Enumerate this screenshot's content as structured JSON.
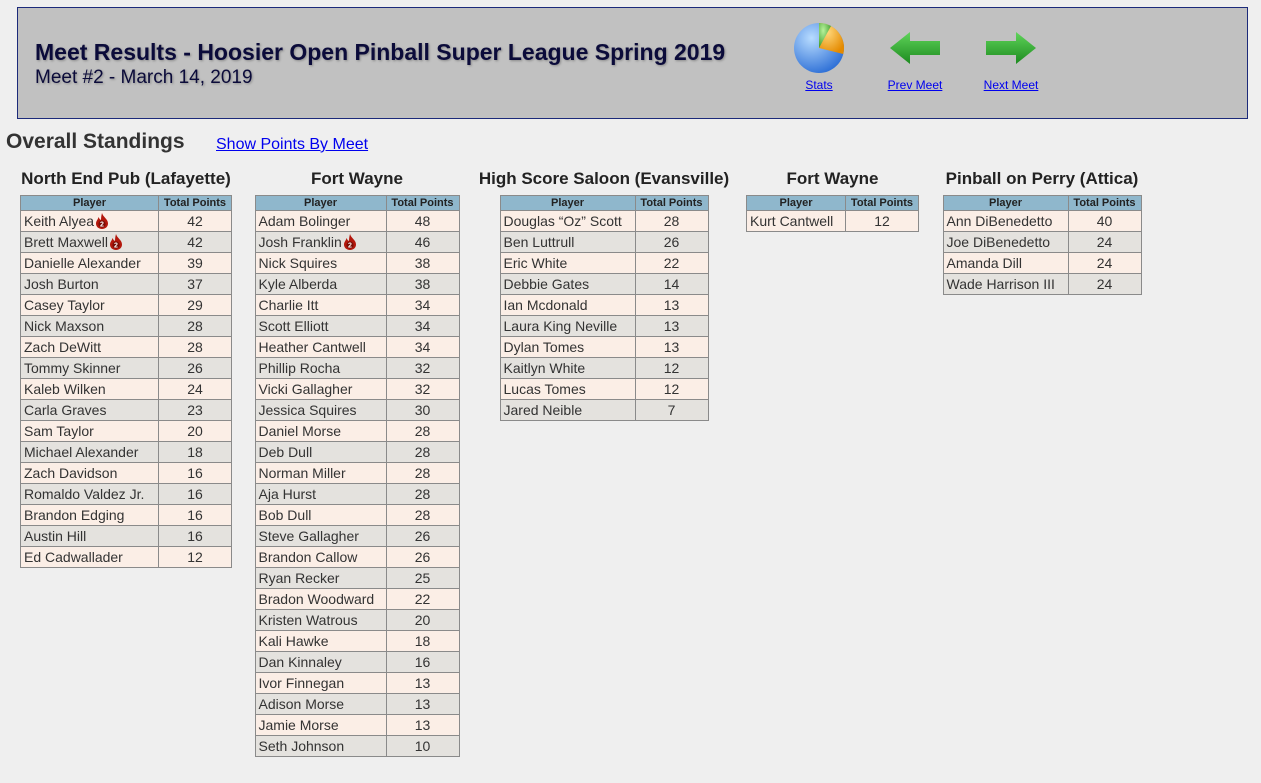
{
  "header": {
    "title": "Meet Results - Hoosier Open Pinball Super League Spring 2019",
    "subtitle": "Meet #2 - March 14, 2019",
    "stats_label": "Stats",
    "prev_label": "Prev Meet",
    "next_label": "Next Meet",
    "icons": {
      "stats": "pie-chart-icon",
      "prev": "arrow-left-icon",
      "next": "arrow-right-icon"
    }
  },
  "standings": {
    "title": "Overall Standings",
    "show_points_link": "Show Points By Meet"
  },
  "columns": {
    "player": "Player",
    "points": "Total Points"
  },
  "locations": [
    {
      "name": "North End Pub (Lafayette)",
      "rows": [
        {
          "player": "Keith Alyea",
          "points": "42",
          "badge": "2"
        },
        {
          "player": "Brett Maxwell",
          "points": "42",
          "badge": "2"
        },
        {
          "player": "Danielle Alexander",
          "points": "39"
        },
        {
          "player": "Josh Burton",
          "points": "37"
        },
        {
          "player": "Casey Taylor",
          "points": "29"
        },
        {
          "player": "Nick Maxson",
          "points": "28"
        },
        {
          "player": "Zach DeWitt",
          "points": "28"
        },
        {
          "player": "Tommy Skinner",
          "points": "26"
        },
        {
          "player": "Kaleb Wilken",
          "points": "24"
        },
        {
          "player": "Carla Graves",
          "points": "23"
        },
        {
          "player": "Sam Taylor",
          "points": "20"
        },
        {
          "player": "Michael Alexander",
          "points": "18"
        },
        {
          "player": "Zach Davidson",
          "points": "16"
        },
        {
          "player": "Romaldo Valdez Jr.",
          "points": "16"
        },
        {
          "player": "Brandon Edging",
          "points": "16"
        },
        {
          "player": "Austin Hill",
          "points": "16"
        },
        {
          "player": "Ed Cadwallader",
          "points": "12"
        }
      ]
    },
    {
      "name": "Fort Wayne",
      "rows": [
        {
          "player": "Adam Bolinger",
          "points": "48"
        },
        {
          "player": "Josh Franklin",
          "points": "46",
          "badge": "2"
        },
        {
          "player": "Nick Squires",
          "points": "38"
        },
        {
          "player": "Kyle Alberda",
          "points": "38"
        },
        {
          "player": "Charlie Itt",
          "points": "34"
        },
        {
          "player": "Scott Elliott",
          "points": "34"
        },
        {
          "player": "Heather Cantwell",
          "points": "34"
        },
        {
          "player": "Phillip Rocha",
          "points": "32"
        },
        {
          "player": "Vicki Gallagher",
          "points": "32"
        },
        {
          "player": "Jessica Squires",
          "points": "30"
        },
        {
          "player": "Daniel Morse",
          "points": "28"
        },
        {
          "player": "Deb Dull",
          "points": "28"
        },
        {
          "player": "Norman Miller",
          "points": "28"
        },
        {
          "player": "Aja Hurst",
          "points": "28"
        },
        {
          "player": "Bob Dull",
          "points": "28"
        },
        {
          "player": "Steve Gallagher",
          "points": "26"
        },
        {
          "player": "Brandon Callow",
          "points": "26"
        },
        {
          "player": "Ryan Recker",
          "points": "25"
        },
        {
          "player": "Bradon Woodward",
          "points": "22"
        },
        {
          "player": "Kristen Watrous",
          "points": "20"
        },
        {
          "player": "Kali Hawke",
          "points": "18"
        },
        {
          "player": "Dan Kinnaley",
          "points": "16"
        },
        {
          "player": "Ivor Finnegan",
          "points": "13"
        },
        {
          "player": "Adison Morse",
          "points": "13"
        },
        {
          "player": "Jamie Morse",
          "points": "13"
        },
        {
          "player": "Seth Johnson",
          "points": "10"
        }
      ]
    },
    {
      "name": "High Score Saloon (Evansville)",
      "rows": [
        {
          "player": "Douglas “Oz” Scott",
          "points": "28"
        },
        {
          "player": "Ben Luttrull",
          "points": "26"
        },
        {
          "player": "Eric White",
          "points": "22"
        },
        {
          "player": "Debbie Gates",
          "points": "14"
        },
        {
          "player": "Ian Mcdonald",
          "points": "13"
        },
        {
          "player": "Laura King Neville",
          "points": "13"
        },
        {
          "player": "Dylan Tomes",
          "points": "13"
        },
        {
          "player": "Kaitlyn White",
          "points": "12"
        },
        {
          "player": "Lucas Tomes",
          "points": "12"
        },
        {
          "player": "Jared Neible",
          "points": "7"
        }
      ]
    },
    {
      "name": "Fort Wayne",
      "rows": [
        {
          "player": "Kurt Cantwell",
          "points": "12"
        }
      ]
    },
    {
      "name": "Pinball on Perry (Attica)",
      "rows": [
        {
          "player": "Ann DiBenedetto",
          "points": "40"
        },
        {
          "player": "Joe DiBenedetto",
          "points": "24"
        },
        {
          "player": "Amanda Dill",
          "points": "24"
        },
        {
          "player": "Wade Harrison III",
          "points": "24"
        }
      ]
    }
  ]
}
